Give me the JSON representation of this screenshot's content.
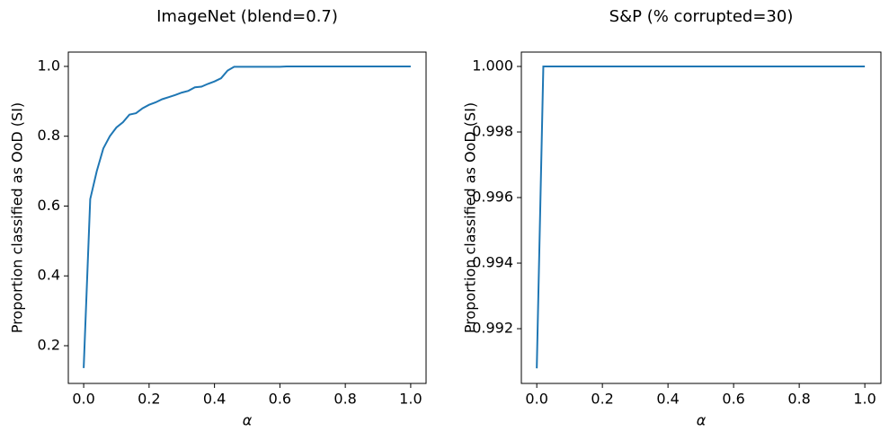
{
  "chart_data": [
    {
      "type": "line",
      "title": "ImageNet (blend=0.7)",
      "x_label": "α",
      "y_label": "Proportion classified as OoD (SI)",
      "color": "#1f77b4",
      "x": [
        0,
        0.02,
        0.04,
        0.06,
        0.08,
        0.1,
        0.12,
        0.14,
        0.16,
        0.18,
        0.2,
        0.22,
        0.24,
        0.26,
        0.28,
        0.3,
        0.32,
        0.34,
        0.36,
        0.38,
        0.4,
        0.42,
        0.44,
        0.46,
        0.48,
        0.6,
        0.62,
        1.0
      ],
      "values": [
        0.136,
        0.62,
        0.7,
        0.765,
        0.8,
        0.825,
        0.84,
        0.862,
        0.866,
        0.88,
        0.89,
        0.897,
        0.906,
        0.912,
        0.918,
        0.925,
        0.93,
        0.94,
        0.942,
        0.95,
        0.957,
        0.966,
        0.988,
        0.999,
        0.999,
        0.999,
        1.0,
        1.0
      ],
      "xlim": [
        -0.047,
        1.047
      ],
      "ylim": [
        0.092,
        1.041
      ],
      "xticks": [
        {
          "value": 0,
          "label": "0.0"
        },
        0.2,
        0.4,
        0.6,
        0.8,
        {
          "value": 1,
          "label": "1.0"
        }
      ],
      "yticks": [
        0.2,
        0.4,
        0.6,
        0.8,
        {
          "value": 1,
          "label": "1.0"
        }
      ]
    },
    {
      "type": "line",
      "title": "S&P (% corrupted=30)",
      "x_label": "α",
      "y_label": "Proportion classified as OoD (SI)",
      "color": "#1f77b4",
      "x": [
        0,
        0.02,
        1.0
      ],
      "values": [
        0.99079,
        1.0,
        1.0
      ],
      "xlim": [
        -0.047,
        1.049
      ],
      "ylim": [
        0.99033,
        1.000438
      ],
      "xticks": [
        {
          "value": 0,
          "label": "0.0"
        },
        0.2,
        0.4,
        0.6,
        0.8,
        {
          "value": 1,
          "label": "1.0"
        }
      ],
      "yticks": [
        0.992,
        0.994,
        0.996,
        0.998,
        {
          "value": 1,
          "label": "1.000"
        }
      ]
    }
  ]
}
